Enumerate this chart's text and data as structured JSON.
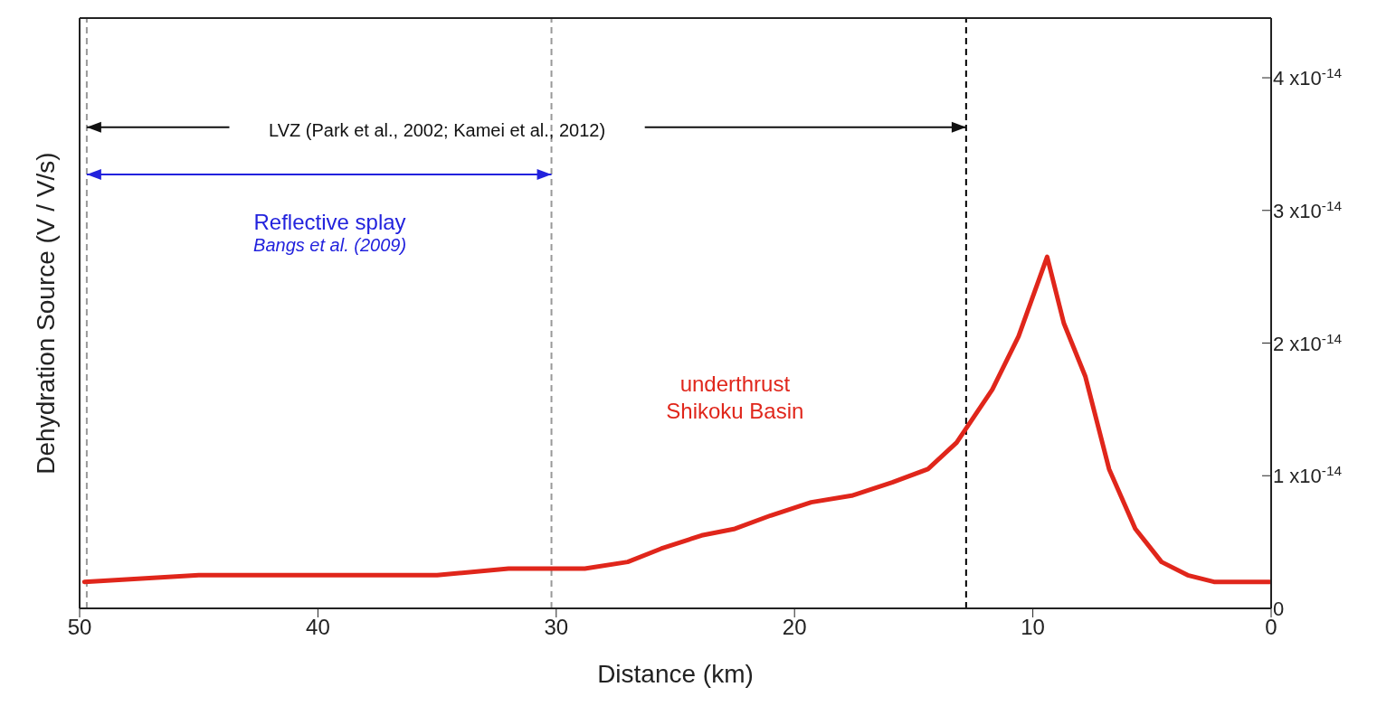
{
  "chart_data": {
    "type": "line",
    "xlabel": "Distance (km)",
    "ylabel": "Dehydration Source (V / V/s)",
    "x": [
      49.8,
      45,
      40,
      37.9,
      35,
      32,
      30.2,
      28.8,
      27,
      25.6,
      23.9,
      22.5,
      21,
      19.3,
      17.6,
      15.9,
      14.4,
      13.2,
      11.7,
      10.6,
      9.4,
      8.7,
      7.8,
      6.8,
      5.7,
      4.6,
      3.5,
      2.4,
      0
    ],
    "series": [
      {
        "color": "#e0261b",
        "values": [
          2e-15,
          2.5e-15,
          2.5e-15,
          2.5e-15,
          2.5e-15,
          3e-15,
          3e-15,
          3e-15,
          3.5e-15,
          4.5e-15,
          5.5e-15,
          6e-15,
          7e-15,
          8e-15,
          8.5e-15,
          9.5e-15,
          1.05e-14,
          1.25e-14,
          1.65e-14,
          2.05e-14,
          2.65e-14,
          2.15e-14,
          1.75e-14,
          1.05e-14,
          6e-15,
          3.5e-15,
          2.5e-15,
          2e-15,
          2e-15
        ]
      }
    ],
    "xlim": [
      50,
      0
    ],
    "xticks": [
      50,
      40,
      30,
      20,
      10,
      0
    ],
    "ylim": [
      0,
      4.45e-14
    ],
    "yticks": [
      0,
      {
        "value": 1e-14,
        "label": "1 x10$^{-14}$"
      },
      {
        "value": 2e-14,
        "label": "2 x10$^{-14}$"
      },
      {
        "value": 3e-14,
        "label": "3 x10$^{-14}$"
      },
      {
        "value": 4e-14,
        "label": "4 x10$^{-14}$"
      }
    ],
    "ref_lines": [
      {
        "axis": "x",
        "value": 49.7,
        "color": "#999999",
        "line_style": "dashed"
      },
      {
        "axis": "x",
        "value": 30.2,
        "color": "#999999",
        "line_style": "dashed"
      },
      {
        "axis": "x",
        "value": 12.8,
        "color": "#000000",
        "line_style": "dashed"
      }
    ],
    "annotations": [
      "LVZ (Park et al., 2002; Kamei et al., 2012)",
      "Reflective splay",
      "Bangs et al. (2009)",
      "underthrust",
      "Shikoku Basin"
    ],
    "line_style": "solid",
    "marker": "none"
  }
}
